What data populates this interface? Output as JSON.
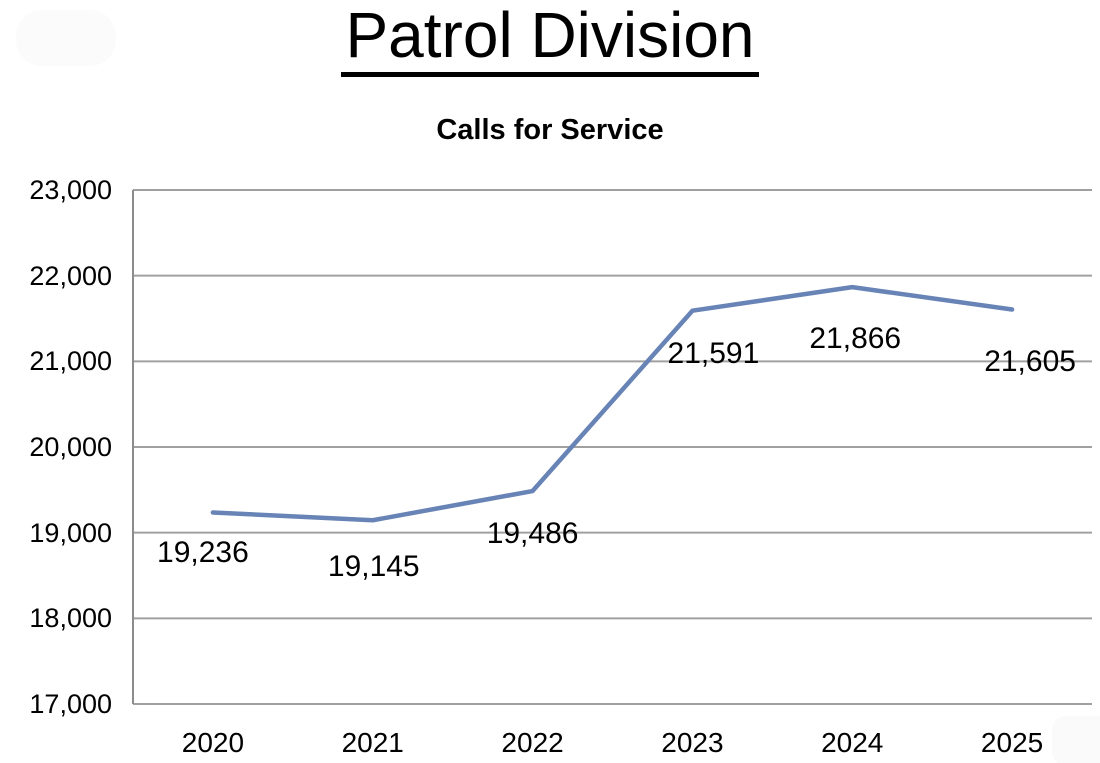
{
  "page": {
    "title": "Patrol Division"
  },
  "colors": {
    "line": "#6884b6",
    "gridline": "#a0a0a0",
    "axis": "#8c8c8c",
    "text": "#000000",
    "background": "#ffffff"
  },
  "chart_data": {
    "type": "line",
    "title": "Calls for Service",
    "categories": [
      "2020",
      "2021",
      "2022",
      "2023",
      "2024",
      "2025"
    ],
    "series": [
      {
        "name": "Calls for Service",
        "values": [
          19236,
          19145,
          19486,
          21591,
          21866,
          21605
        ]
      }
    ],
    "data_labels": [
      "19,236",
      "19,145",
      "19,486",
      "21,591",
      "21,866",
      "21,605"
    ],
    "ylim": [
      17000,
      23000
    ],
    "y_tick_step": 1000,
    "y_tick_labels": [
      "17,000",
      "18,000",
      "19,000",
      "20,000",
      "21,000",
      "22,000",
      "23,000"
    ],
    "xlabel": "",
    "ylabel": "",
    "grid": "horizontal",
    "legend": "none",
    "markers": false
  }
}
